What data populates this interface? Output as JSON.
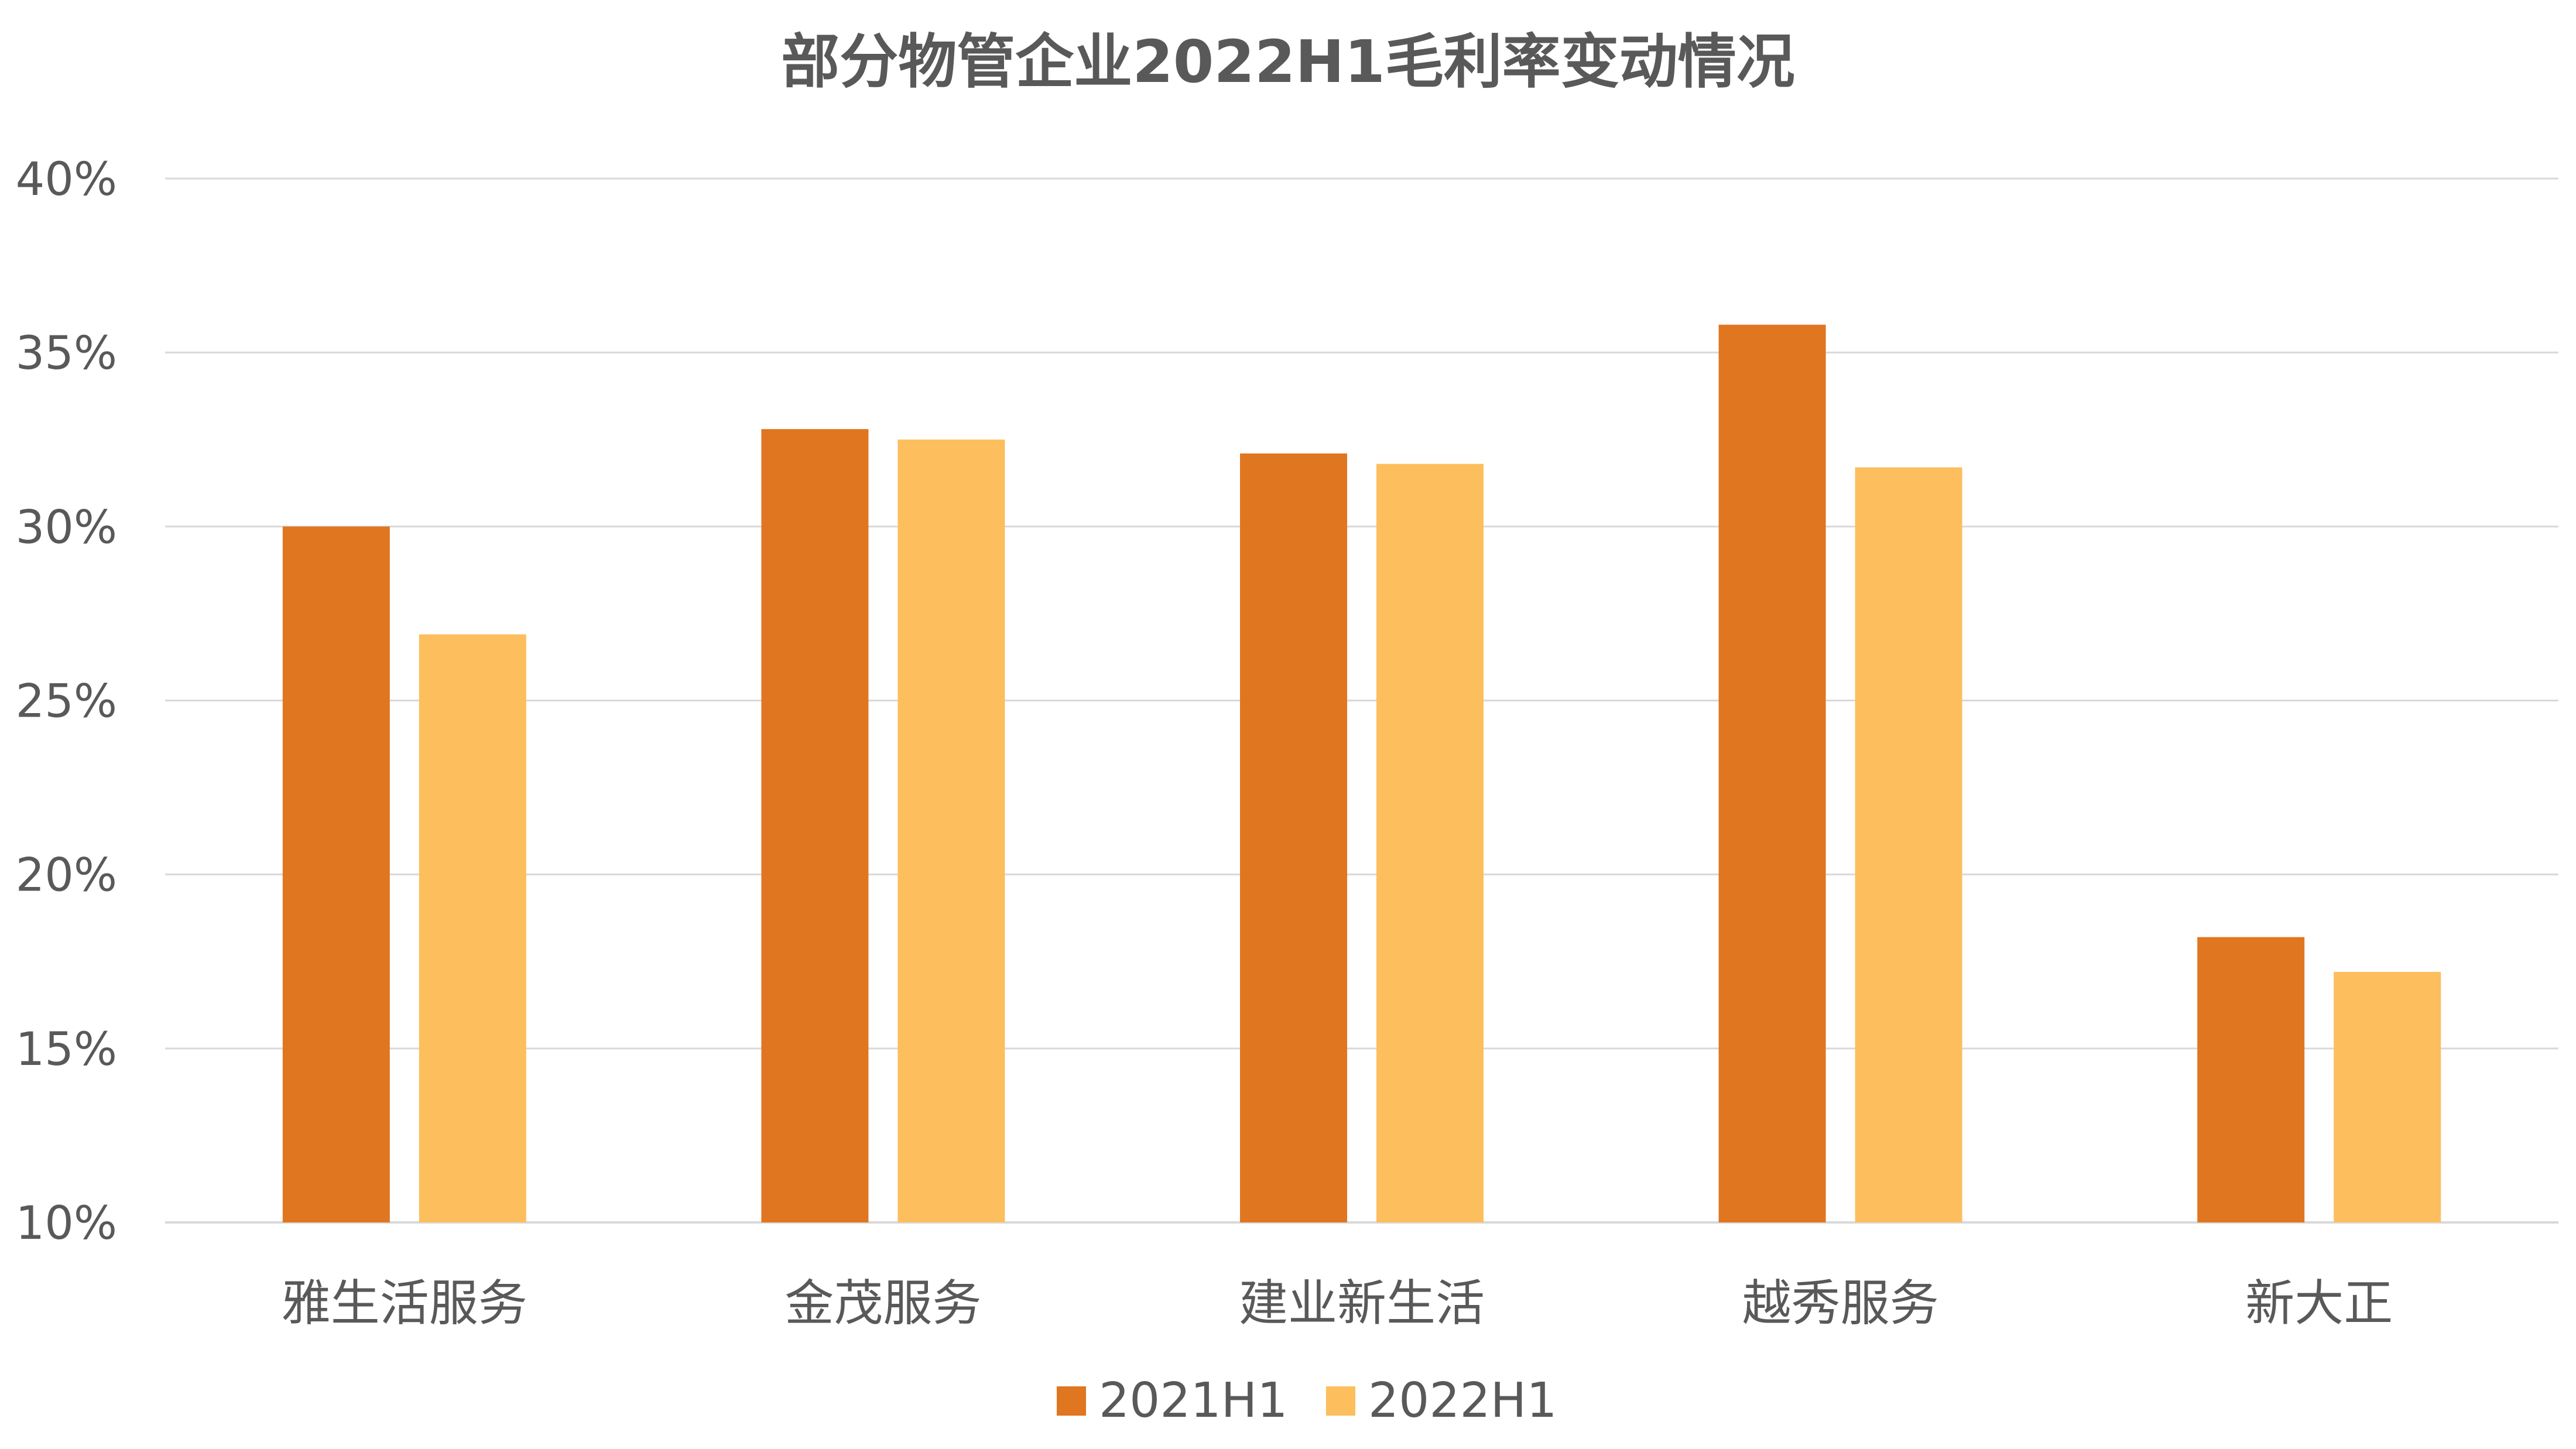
{
  "chart_data": {
    "type": "bar",
    "title": "部分物管企业2022H1毛利率变动情况",
    "categories": [
      "雅生活服务",
      "金茂服务",
      "建业新生活",
      "越秀服务",
      "新大正"
    ],
    "series": [
      {
        "name": "2021H1",
        "values": [
          30.0,
          32.8,
          32.1,
          35.8,
          18.2
        ],
        "color": "#E07620"
      },
      {
        "name": "2022H1",
        "values": [
          26.9,
          32.5,
          31.8,
          31.7,
          17.2
        ],
        "color": "#FDBE5E"
      }
    ],
    "ylim": [
      10,
      40
    ],
    "yticks": [
      10,
      15,
      20,
      25,
      30,
      35,
      40
    ],
    "ytick_labels": [
      "10%",
      "15%",
      "20%",
      "25%",
      "30%",
      "35%",
      "40%"
    ],
    "grid": true,
    "legend_position": "bottom-center"
  }
}
